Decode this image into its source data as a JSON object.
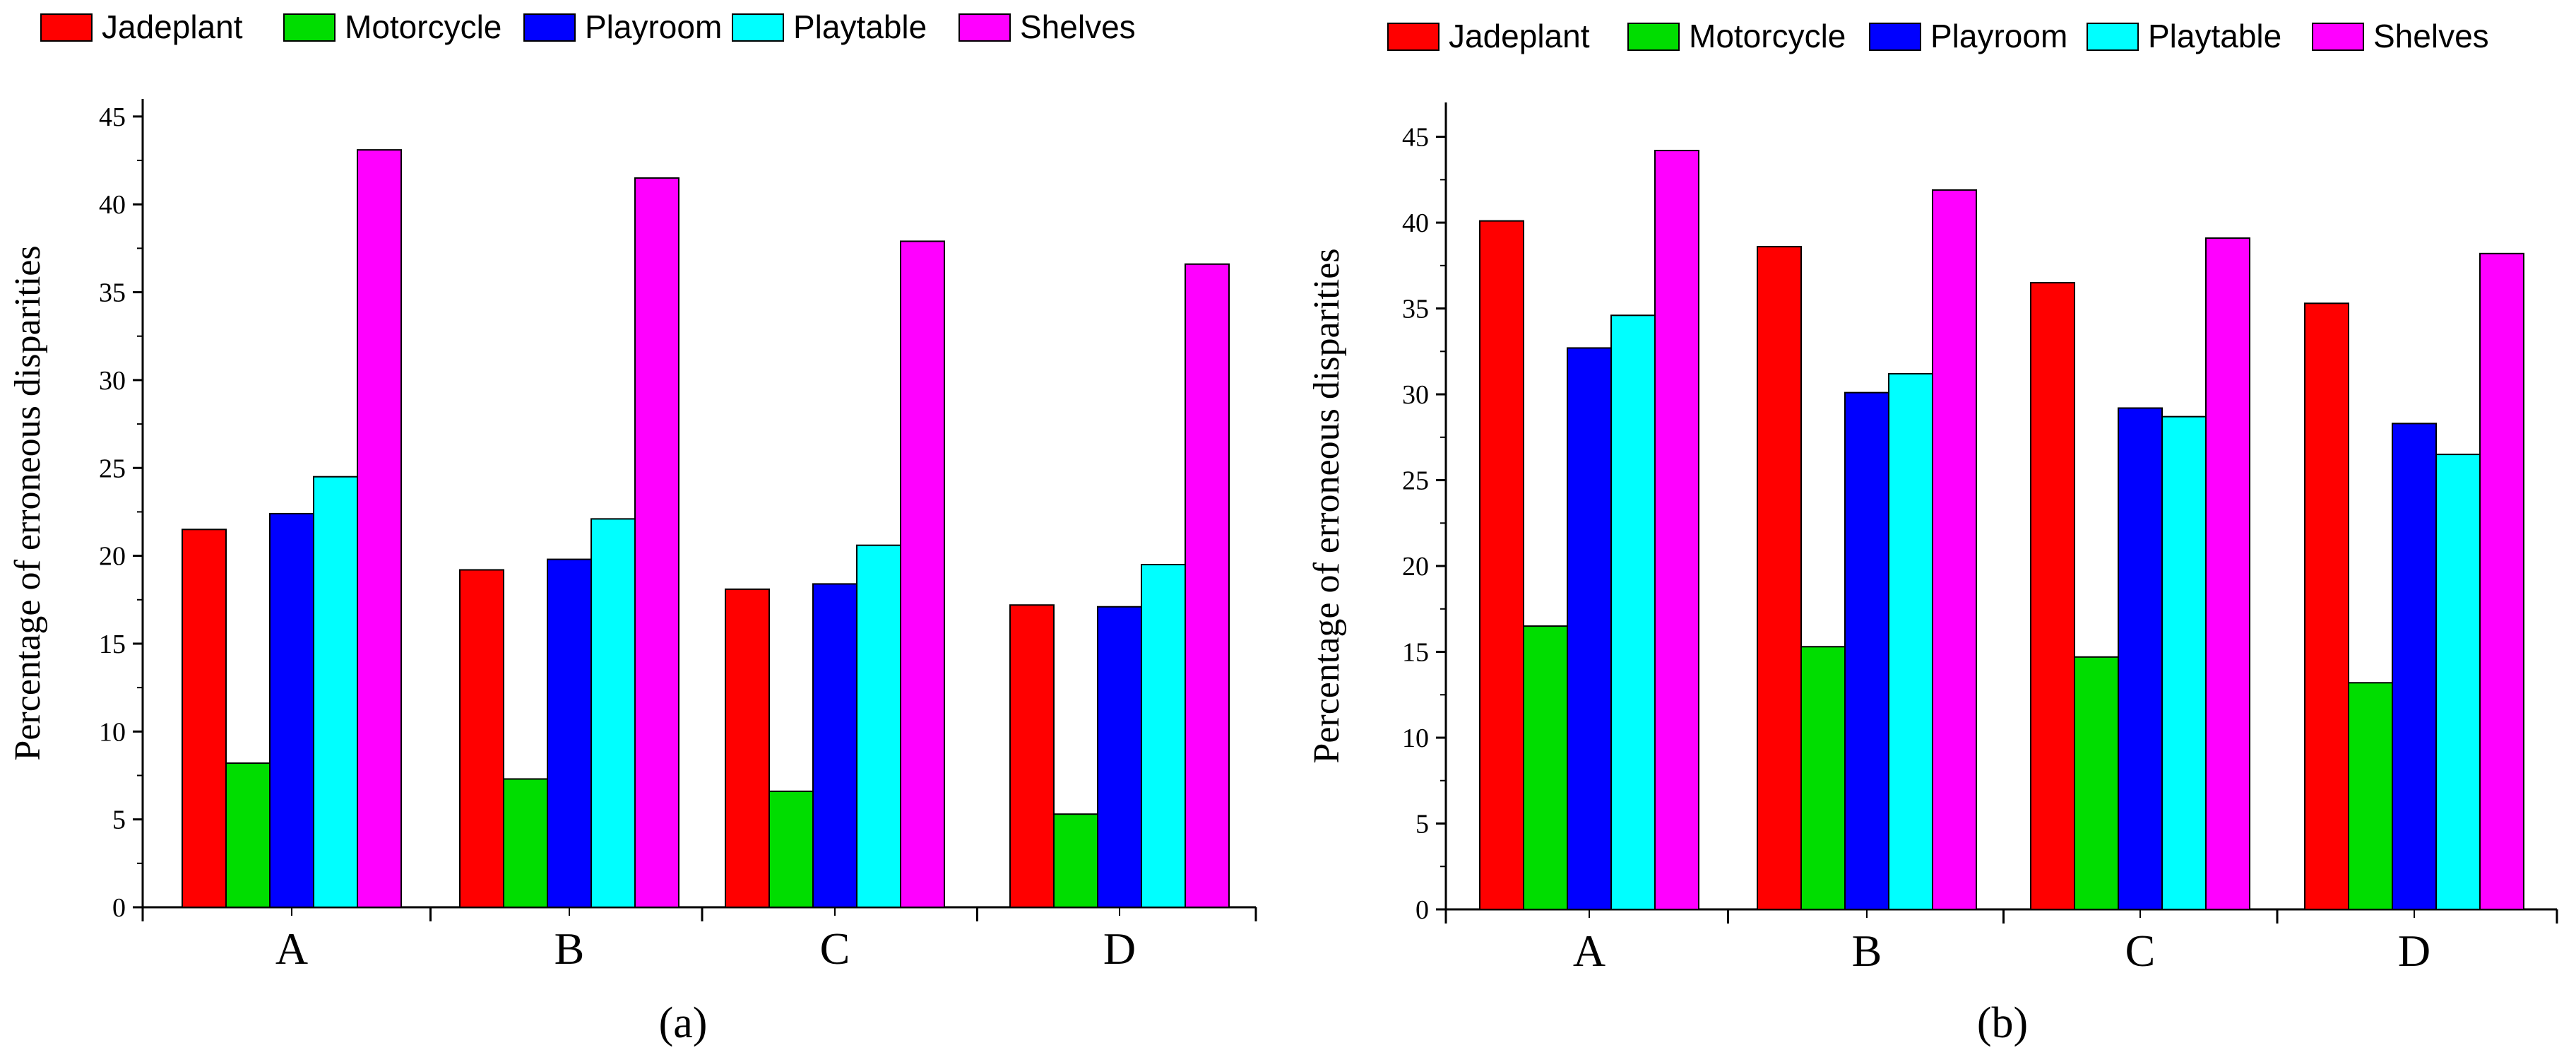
{
  "chart_data": [
    {
      "type": "bar",
      "panel_label": "(a)",
      "categories": [
        "A",
        "B",
        "C",
        "D"
      ],
      "ylabel": "Percentage of erroneous disparities",
      "xlabel": "",
      "ylim": [
        0,
        46
      ],
      "yticks": [
        0,
        5,
        10,
        15,
        20,
        25,
        30,
        35,
        40,
        45
      ],
      "grid": false,
      "legend_position": "top",
      "series": [
        {
          "name": "Jadeplant",
          "color": "#ff0000",
          "values": [
            21.5,
            19.2,
            18.1,
            17.2
          ]
        },
        {
          "name": "Motorcycle",
          "color": "#00dd00",
          "values": [
            8.2,
            7.3,
            6.6,
            5.3
          ]
        },
        {
          "name": "Playroom",
          "color": "#0000ff",
          "values": [
            22.4,
            19.8,
            18.4,
            17.1
          ]
        },
        {
          "name": "Playtable",
          "color": "#00ffff",
          "values": [
            24.5,
            22.1,
            20.6,
            19.5
          ]
        },
        {
          "name": "Shelves",
          "color": "#ff00ff",
          "values": [
            43.1,
            41.5,
            37.9,
            36.6
          ]
        }
      ]
    },
    {
      "type": "bar",
      "panel_label": "(b)",
      "categories": [
        "A",
        "B",
        "C",
        "D"
      ],
      "ylabel": "Percentage of erroneous disparities",
      "xlabel": "",
      "ylim": [
        0,
        47
      ],
      "yticks": [
        0,
        5,
        10,
        15,
        20,
        25,
        30,
        35,
        40,
        45
      ],
      "grid": false,
      "legend_position": "top",
      "series": [
        {
          "name": "Jadeplant",
          "color": "#ff0000",
          "values": [
            40.1,
            38.6,
            36.5,
            35.3
          ]
        },
        {
          "name": "Motorcycle",
          "color": "#00dd00",
          "values": [
            16.5,
            15.3,
            14.7,
            13.2
          ]
        },
        {
          "name": "Playroom",
          "color": "#0000ff",
          "values": [
            32.7,
            30.1,
            29.2,
            28.3
          ]
        },
        {
          "name": "Playtable",
          "color": "#00ffff",
          "values": [
            34.6,
            31.2,
            28.7,
            26.5
          ]
        },
        {
          "name": "Shelves",
          "color": "#ff00ff",
          "values": [
            44.2,
            41.9,
            39.1,
            38.2
          ]
        }
      ]
    }
  ]
}
